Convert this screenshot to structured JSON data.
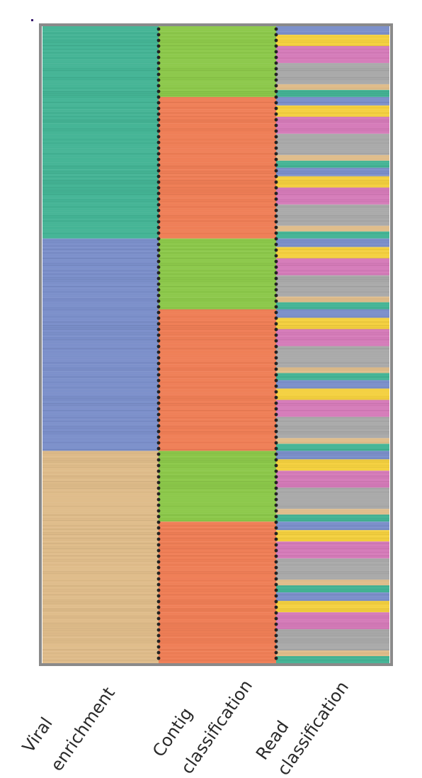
{
  "chart_data": {
    "type": "heatmap",
    "title": "",
    "columns": [
      {
        "label_line1": "Viral",
        "label_line2": "enrichment"
      },
      {
        "label_line1": "Contig",
        "label_line2": "classification"
      },
      {
        "label_line1": "Read",
        "label_line2": "classification"
      }
    ],
    "colors": {
      "teal": "#44b495",
      "blue": "#7b8fca",
      "tan": "#dfbc8a",
      "green": "#8cc84a",
      "orange": "#ef7e56",
      "yellow": "#f4d03f",
      "pink": "#d57bb9",
      "gray": "#a9a9a9",
      "frame": "#8a8a8a",
      "separator": "#222222"
    },
    "viral_enrichment": [
      {
        "color": "teal",
        "from": 0,
        "to": 3
      },
      {
        "color": "blue",
        "from": 3,
        "to": 6
      },
      {
        "color": "tan",
        "from": 6,
        "to": 9
      }
    ],
    "contig_classification": [
      {
        "color": "green",
        "from": 0,
        "to": 1
      },
      {
        "color": "orange",
        "from": 1,
        "to": 3
      },
      {
        "color": "green",
        "from": 3,
        "to": 4
      },
      {
        "color": "orange",
        "from": 4,
        "to": 6
      },
      {
        "color": "green",
        "from": 6,
        "to": 7
      },
      {
        "color": "orange",
        "from": 7,
        "to": 9
      }
    ],
    "read_classification_unit": [
      {
        "color": "blue",
        "from": 0.0,
        "to": 0.12
      },
      {
        "color": "yellow",
        "from": 0.12,
        "to": 0.28
      },
      {
        "color": "pink",
        "from": 0.28,
        "to": 0.52
      },
      {
        "color": "gray",
        "from": 0.52,
        "to": 0.82
      },
      {
        "color": "tan",
        "from": 0.82,
        "to": 0.9
      },
      {
        "color": "teal",
        "from": 0.9,
        "to": 1.0
      }
    ],
    "row_units": 9
  }
}
